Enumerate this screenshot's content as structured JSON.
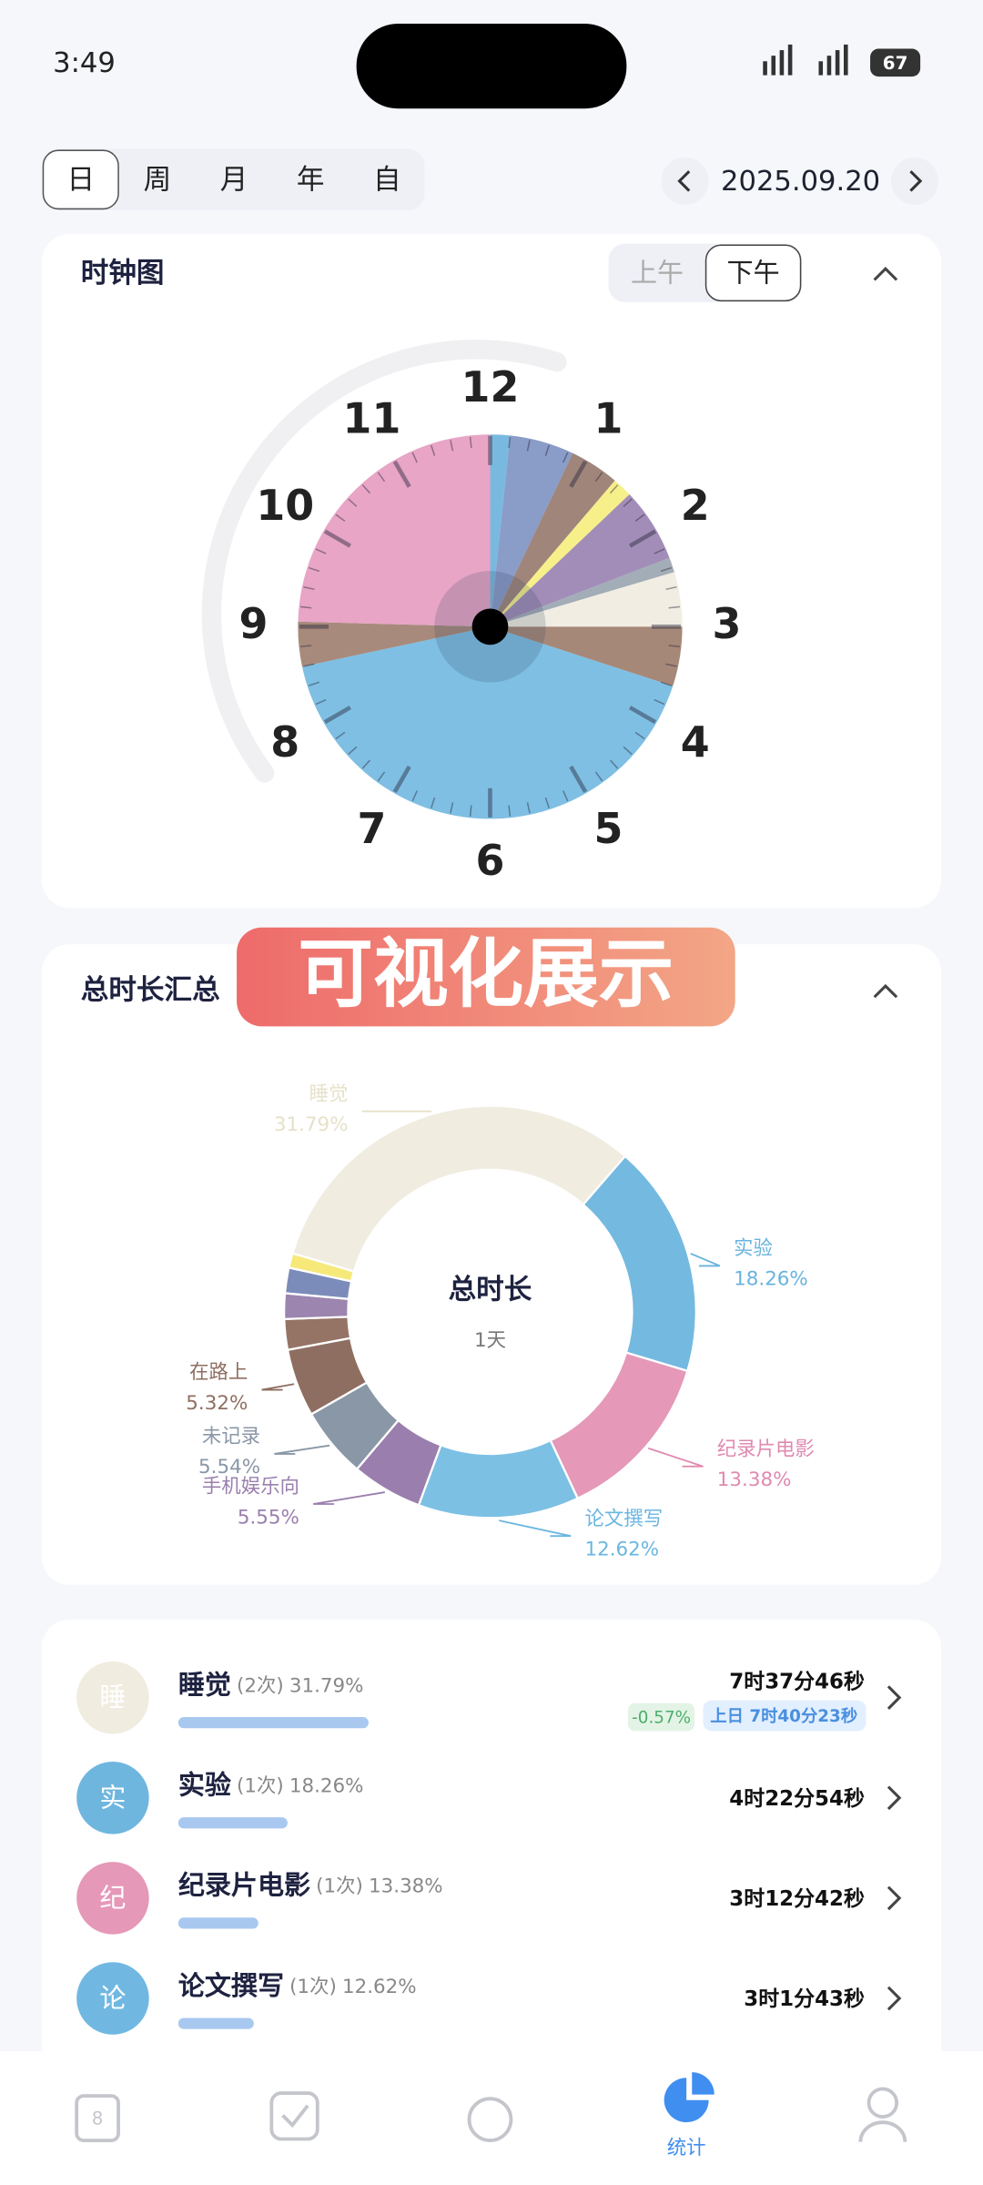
{
  "status_bar": {
    "time": "3:49",
    "battery": "67"
  },
  "period_tabs": [
    "日",
    "周",
    "月",
    "年",
    "自"
  ],
  "selected_tab": 0,
  "date": "2025.09.20",
  "clock_card": {
    "title": "时钟图",
    "toggle": [
      "上午",
      "下午"
    ],
    "selected": 1,
    "hour_labels": [
      12,
      1,
      2,
      3,
      4,
      5,
      6,
      7,
      8,
      9,
      10,
      11
    ],
    "segments": [
      {
        "start": 0,
        "end": 0.2,
        "color": "#7ab9df"
      },
      {
        "start": 0.2,
        "end": 0.85,
        "color": "#8a9cc8"
      },
      {
        "start": 0.85,
        "end": 1.35,
        "color": "#a0857a"
      },
      {
        "start": 1.35,
        "end": 1.55,
        "color": "#f7ef8a"
      },
      {
        "start": 1.55,
        "end": 2.3,
        "color": "#a28db8"
      },
      {
        "start": 2.3,
        "end": 2.45,
        "color": "#a3adb7"
      },
      {
        "start": 2.45,
        "end": 3.0,
        "color": "#f1ede2"
      },
      {
        "start": 3.0,
        "end": 3.6,
        "color": "#a68878"
      },
      {
        "start": 3.6,
        "end": 8.6,
        "color": "#7fbfe3"
      },
      {
        "start": 8.6,
        "end": 9.05,
        "color": "#a88a7c"
      },
      {
        "start": 9.05,
        "end": 12,
        "color": "#e8a5c6"
      }
    ]
  },
  "banner": "可视化展示",
  "summary_card": {
    "title": "总时长汇总",
    "center_title": "总时长",
    "center_value": "1天",
    "segments": [
      {
        "name": "睡觉",
        "value": 31.79,
        "value_label": "31.79%",
        "color": "#f0ece0",
        "label_color": "#e6e1c8"
      },
      {
        "name": "实验",
        "value": 18.26,
        "value_label": "18.26%",
        "color": "#74b9e0",
        "label_color": "#69b3dd"
      },
      {
        "name": "纪录片电影",
        "value": 13.38,
        "value_label": "13.38%",
        "color": "#e598b8",
        "label_color": "#e08ab0"
      },
      {
        "name": "论文撰写",
        "value": 12.62,
        "value_label": "12.62%",
        "color": "#7cc0e4",
        "label_color": "#6bb6e0"
      },
      {
        "name": "手机娱乐向",
        "value": 5.55,
        "value_label": "5.55%",
        "color": "#9a7fae",
        "label_color": "#9a7fae"
      },
      {
        "name": "未记录",
        "value": 5.54,
        "value_label": "5.54%",
        "color": "#8a97a6",
        "label_color": "#8a97a6"
      },
      {
        "name": "在路上",
        "value": 5.32,
        "value_label": "5.32%",
        "color": "#8f6e62",
        "label_color": "#8f6e62"
      },
      {
        "name": null,
        "value": 2.4,
        "value_label": null,
        "color": "#957466",
        "label_color": null
      },
      {
        "name": null,
        "value": 2.0,
        "value_label": null,
        "color": "#9c85ae",
        "label_color": null
      },
      {
        "name": null,
        "value": 2.0,
        "value_label": null,
        "color": "#7b8cba",
        "label_color": null
      },
      {
        "name": null,
        "value": 1.14,
        "value_label": null,
        "color": "#f6e97a",
        "label_color": null
      }
    ]
  },
  "list": [
    {
      "icon": "睡",
      "name": "睡觉",
      "count": "(2次)",
      "percent": 31.79,
      "percent_label": "31.79%",
      "duration": "7时37分46秒",
      "delta": "-0.57%",
      "previous": "上日 7时40分23秒",
      "color": "#f0ece0"
    },
    {
      "icon": "实",
      "name": "实验",
      "count": "(1次)",
      "percent": 18.26,
      "percent_label": "18.26%",
      "duration": "4时22分54秒",
      "color": "#6fb6df"
    },
    {
      "icon": "纪",
      "name": "纪录片电影",
      "count": "(1次)",
      "percent": 13.38,
      "percent_label": "13.38%",
      "duration": "3时12分42秒",
      "color": "#e598b8"
    },
    {
      "icon": "论",
      "name": "论文撰写",
      "count": "(1次)",
      "percent": 12.62,
      "percent_label": "12.62%",
      "duration": "3时1分43秒",
      "color": "#70b8e2"
    }
  ],
  "nav": {
    "active_label": "统计"
  }
}
